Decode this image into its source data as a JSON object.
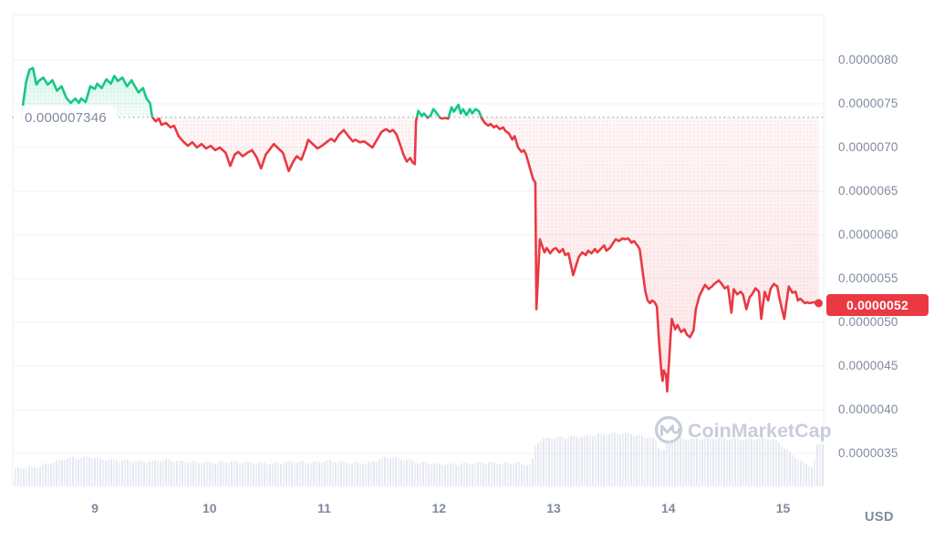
{
  "colors": {
    "up_green": "#16c784",
    "down_red": "#ea3943",
    "axis_text": "#808a9d",
    "gridline": "#f0f2f7",
    "border": "#edeff4",
    "volume_bar": "#dce0ec",
    "baseline_dots": "#a9b1c2",
    "watermark": "#c8cdda",
    "badge_bg": "#ea3943",
    "badge_text": "#ffffff",
    "background": "#ffffff"
  },
  "watermark": {
    "text": "CoinMarketCap"
  },
  "chart_data": {
    "type": "line",
    "currency_label": "USD",
    "unit_note": "price values in 1e-7 USD, x in day-of-month",
    "x_axis": {
      "tick_days": [
        9,
        10,
        11,
        12,
        13,
        14,
        15
      ],
      "tick_labels": [
        "9",
        "10",
        "11",
        "12",
        "13",
        "14",
        "15"
      ],
      "domain_days": [
        8.29,
        15.36
      ]
    },
    "y_axis": {
      "ticks": [
        {
          "v": 80,
          "label": "0.0000080"
        },
        {
          "v": 75,
          "label": "0.0000075"
        },
        {
          "v": 70,
          "label": "0.0000070"
        },
        {
          "v": 65,
          "label": "0.0000065"
        },
        {
          "v": 60,
          "label": "0.0000060"
        },
        {
          "v": 55,
          "label": "0.0000055"
        },
        {
          "v": 50,
          "label": "0.0000050"
        },
        {
          "v": 45,
          "label": "0.0000045"
        },
        {
          "v": 40,
          "label": "0.0000040"
        },
        {
          "v": 35,
          "label": "0.0000035"
        }
      ]
    },
    "baseline": {
      "value": 73.46,
      "label": "0.000007346"
    },
    "last_price": {
      "value": 52.2,
      "label": "0.0000052"
    },
    "series": {
      "name": "price",
      "points": [
        [
          8.36,
          73.6
        ],
        [
          8.38,
          75.5
        ],
        [
          8.4,
          77.5
        ],
        [
          8.43,
          78.9
        ],
        [
          8.46,
          79.1
        ],
        [
          8.49,
          77.2
        ],
        [
          8.51,
          77.6
        ],
        [
          8.55,
          78.0
        ],
        [
          8.59,
          77.2
        ],
        [
          8.63,
          77.7
        ],
        [
          8.67,
          76.5
        ],
        [
          8.71,
          77.0
        ],
        [
          8.75,
          75.7
        ],
        [
          8.79,
          75.1
        ],
        [
          8.83,
          75.6
        ],
        [
          8.86,
          75.1
        ],
        [
          8.88,
          75.6
        ],
        [
          8.92,
          75.2
        ],
        [
          8.96,
          77.0
        ],
        [
          9.0,
          76.7
        ],
        [
          9.02,
          77.3
        ],
        [
          9.06,
          76.8
        ],
        [
          9.1,
          77.8
        ],
        [
          9.14,
          77.3
        ],
        [
          9.17,
          78.2
        ],
        [
          9.2,
          77.6
        ],
        [
          9.24,
          78.0
        ],
        [
          9.28,
          77.0
        ],
        [
          9.32,
          77.7
        ],
        [
          9.34,
          77.2
        ],
        [
          9.38,
          76.3
        ],
        [
          9.42,
          76.8
        ],
        [
          9.45,
          75.6
        ],
        [
          9.48,
          75.1
        ],
        [
          9.5,
          73.5
        ],
        [
          9.53,
          73.0
        ],
        [
          9.56,
          73.3
        ],
        [
          9.58,
          72.6
        ],
        [
          9.62,
          72.8
        ],
        [
          9.66,
          72.3
        ],
        [
          9.69,
          72.5
        ],
        [
          9.73,
          71.3
        ],
        [
          9.77,
          70.7
        ],
        [
          9.81,
          70.2
        ],
        [
          9.85,
          70.6
        ],
        [
          9.89,
          70.0
        ],
        [
          9.93,
          70.4
        ],
        [
          9.97,
          69.9
        ],
        [
          10.01,
          70.2
        ],
        [
          10.05,
          69.7
        ],
        [
          10.09,
          70.0
        ],
        [
          10.14,
          69.4
        ],
        [
          10.18,
          67.9
        ],
        [
          10.22,
          69.2
        ],
        [
          10.25,
          69.5
        ],
        [
          10.29,
          69.0
        ],
        [
          10.33,
          69.4
        ],
        [
          10.37,
          69.7
        ],
        [
          10.41,
          68.9
        ],
        [
          10.45,
          67.6
        ],
        [
          10.49,
          69.2
        ],
        [
          10.52,
          69.7
        ],
        [
          10.56,
          70.4
        ],
        [
          10.6,
          69.9
        ],
        [
          10.64,
          69.4
        ],
        [
          10.69,
          67.3
        ],
        [
          10.73,
          68.4
        ],
        [
          10.76,
          69.0
        ],
        [
          10.8,
          68.6
        ],
        [
          10.84,
          70.0
        ],
        [
          10.86,
          70.9
        ],
        [
          10.9,
          70.4
        ],
        [
          10.94,
          69.9
        ],
        [
          10.98,
          70.2
        ],
        [
          11.02,
          70.6
        ],
        [
          11.06,
          71.0
        ],
        [
          11.09,
          70.7
        ],
        [
          11.13,
          71.5
        ],
        [
          11.17,
          72.0
        ],
        [
          11.21,
          71.3
        ],
        [
          11.25,
          70.7
        ],
        [
          11.27,
          70.9
        ],
        [
          11.31,
          70.6
        ],
        [
          11.35,
          70.7
        ],
        [
          11.38,
          70.4
        ],
        [
          11.42,
          70.0
        ],
        [
          11.46,
          70.9
        ],
        [
          11.5,
          71.8
        ],
        [
          11.54,
          72.1
        ],
        [
          11.57,
          71.8
        ],
        [
          11.6,
          72.0
        ],
        [
          11.63,
          71.5
        ],
        [
          11.67,
          70.0
        ],
        [
          11.69,
          69.2
        ],
        [
          11.72,
          68.4
        ],
        [
          11.75,
          68.8
        ],
        [
          11.77,
          68.3
        ],
        [
          11.79,
          68.1
        ],
        [
          11.8,
          73.0
        ],
        [
          11.82,
          74.2
        ],
        [
          11.85,
          73.6
        ],
        [
          11.87,
          73.9
        ],
        [
          11.9,
          73.4
        ],
        [
          11.93,
          73.7
        ],
        [
          11.95,
          74.4
        ],
        [
          11.97,
          74.1
        ],
        [
          12.01,
          73.4
        ],
        [
          12.03,
          73.3
        ],
        [
          12.05,
          73.4
        ],
        [
          12.08,
          73.3
        ],
        [
          12.11,
          74.6
        ],
        [
          12.13,
          74.1
        ],
        [
          12.17,
          74.9
        ],
        [
          12.19,
          73.9
        ],
        [
          12.21,
          74.4
        ],
        [
          12.24,
          73.7
        ],
        [
          12.27,
          74.4
        ],
        [
          12.29,
          73.9
        ],
        [
          12.32,
          74.4
        ],
        [
          12.35,
          74.1
        ],
        [
          12.37,
          73.4
        ],
        [
          12.4,
          72.8
        ],
        [
          12.43,
          72.5
        ],
        [
          12.45,
          72.7
        ],
        [
          12.48,
          72.3
        ],
        [
          12.5,
          72.5
        ],
        [
          12.53,
          72.1
        ],
        [
          12.56,
          72.3
        ],
        [
          12.58,
          71.9
        ],
        [
          12.61,
          71.6
        ],
        [
          12.64,
          70.9
        ],
        [
          12.66,
          71.3
        ],
        [
          12.69,
          70.0
        ],
        [
          12.72,
          69.5
        ],
        [
          12.74,
          69.7
        ],
        [
          12.76,
          69.2
        ],
        [
          12.79,
          67.8
        ],
        [
          12.82,
          66.4
        ],
        [
          12.84,
          66.0
        ],
        [
          12.85,
          51.5
        ],
        [
          12.88,
          59.5
        ],
        [
          12.92,
          58.0
        ],
        [
          12.94,
          58.5
        ],
        [
          12.97,
          57.9
        ],
        [
          13.0,
          58.4
        ],
        [
          13.02,
          58.5
        ],
        [
          13.05,
          58.0
        ],
        [
          13.08,
          58.4
        ],
        [
          13.1,
          57.7
        ],
        [
          13.13,
          57.9
        ],
        [
          13.17,
          55.4
        ],
        [
          13.2,
          56.7
        ],
        [
          13.22,
          57.5
        ],
        [
          13.25,
          58.0
        ],
        [
          13.28,
          57.7
        ],
        [
          13.3,
          58.2
        ],
        [
          13.33,
          57.9
        ],
        [
          13.36,
          58.4
        ],
        [
          13.38,
          58.0
        ],
        [
          13.41,
          58.4
        ],
        [
          13.44,
          58.8
        ],
        [
          13.46,
          58.2
        ],
        [
          13.49,
          58.5
        ],
        [
          13.52,
          59.1
        ],
        [
          13.54,
          59.5
        ],
        [
          13.57,
          59.3
        ],
        [
          13.6,
          59.6
        ],
        [
          13.62,
          59.5
        ],
        [
          13.65,
          59.6
        ],
        [
          13.68,
          59.1
        ],
        [
          13.7,
          59.3
        ],
        [
          13.73,
          58.8
        ],
        [
          13.75,
          58.4
        ],
        [
          13.78,
          55.4
        ],
        [
          13.8,
          53.5
        ],
        [
          13.82,
          52.5
        ],
        [
          13.84,
          52.2
        ],
        [
          13.86,
          52.5
        ],
        [
          13.88,
          52.3
        ],
        [
          13.9,
          51.8
        ],
        [
          13.92,
          47.6
        ],
        [
          13.94,
          44.2
        ],
        [
          13.95,
          43.3
        ],
        [
          13.96,
          44.5
        ],
        [
          13.98,
          44.0
        ],
        [
          13.99,
          42.1
        ],
        [
          14.02,
          48.6
        ],
        [
          14.03,
          50.4
        ],
        [
          14.06,
          49.2
        ],
        [
          14.08,
          49.7
        ],
        [
          14.11,
          48.9
        ],
        [
          14.14,
          49.2
        ],
        [
          14.16,
          48.6
        ],
        [
          14.19,
          48.3
        ],
        [
          14.22,
          49.1
        ],
        [
          14.24,
          51.5
        ],
        [
          14.27,
          53.0
        ],
        [
          14.3,
          53.8
        ],
        [
          14.32,
          54.3
        ],
        [
          14.35,
          53.8
        ],
        [
          14.38,
          54.1
        ],
        [
          14.4,
          54.4
        ],
        [
          14.44,
          54.8
        ],
        [
          14.47,
          54.3
        ],
        [
          14.49,
          53.9
        ],
        [
          14.52,
          54.1
        ],
        [
          14.55,
          51.1
        ],
        [
          14.57,
          53.8
        ],
        [
          14.6,
          53.2
        ],
        [
          14.63,
          53.5
        ],
        [
          14.65,
          53.2
        ],
        [
          14.68,
          51.5
        ],
        [
          14.71,
          52.9
        ],
        [
          14.73,
          53.2
        ],
        [
          14.76,
          53.9
        ],
        [
          14.79,
          53.5
        ],
        [
          14.81,
          50.4
        ],
        [
          14.84,
          53.5
        ],
        [
          14.87,
          52.5
        ],
        [
          14.89,
          53.8
        ],
        [
          14.92,
          54.4
        ],
        [
          14.95,
          54.1
        ],
        [
          14.97,
          52.7
        ],
        [
          15.01,
          50.4
        ],
        [
          15.05,
          54.1
        ],
        [
          15.08,
          53.4
        ],
        [
          15.11,
          53.5
        ],
        [
          15.13,
          52.5
        ],
        [
          15.15,
          52.7
        ],
        [
          15.19,
          52.2
        ],
        [
          15.21,
          52.3
        ],
        [
          15.23,
          52.2
        ],
        [
          15.27,
          52.3
        ],
        [
          15.31,
          52.2
        ]
      ]
    },
    "volume": {
      "name": "volume",
      "envelope_day_height": [
        [
          8.3,
          19
        ],
        [
          8.49,
          20
        ],
        [
          8.61,
          25
        ],
        [
          8.76,
          30
        ],
        [
          8.97,
          31
        ],
        [
          9.05,
          29
        ],
        [
          9.25,
          27
        ],
        [
          9.45,
          26
        ],
        [
          9.64,
          28
        ],
        [
          9.76,
          26
        ],
        [
          10.0,
          25
        ],
        [
          10.16,
          26
        ],
        [
          10.32,
          25
        ],
        [
          10.56,
          24
        ],
        [
          10.72,
          26
        ],
        [
          10.88,
          25
        ],
        [
          11.04,
          27
        ],
        [
          11.19,
          25
        ],
        [
          11.35,
          24
        ],
        [
          11.51,
          30
        ],
        [
          11.59,
          31
        ],
        [
          11.71,
          28
        ],
        [
          11.83,
          25
        ],
        [
          11.95,
          24
        ],
        [
          12.07,
          23
        ],
        [
          12.23,
          24
        ],
        [
          12.39,
          25
        ],
        [
          12.55,
          24
        ],
        [
          12.67,
          25
        ],
        [
          12.77,
          23
        ],
        [
          12.8,
          21
        ],
        [
          12.83,
          43
        ],
        [
          12.87,
          49
        ],
        [
          12.94,
          52
        ],
        [
          13.1,
          53
        ],
        [
          13.26,
          54
        ],
        [
          13.38,
          56
        ],
        [
          13.5,
          57
        ],
        [
          13.66,
          57
        ],
        [
          13.7,
          55
        ],
        [
          13.82,
          53
        ],
        [
          13.88,
          50
        ],
        [
          13.91,
          41
        ],
        [
          13.95,
          38
        ],
        [
          13.99,
          48
        ],
        [
          14.06,
          51
        ],
        [
          14.22,
          51
        ],
        [
          14.38,
          52
        ],
        [
          14.53,
          51
        ],
        [
          14.69,
          51
        ],
        [
          14.85,
          52
        ],
        [
          14.92,
          50
        ],
        [
          14.97,
          45
        ],
        [
          15.05,
          36
        ],
        [
          15.13,
          28
        ],
        [
          15.21,
          22
        ],
        [
          15.26,
          20
        ],
        [
          15.28,
          43
        ],
        [
          15.31,
          45
        ],
        [
          15.34,
          46
        ]
      ]
    }
  }
}
